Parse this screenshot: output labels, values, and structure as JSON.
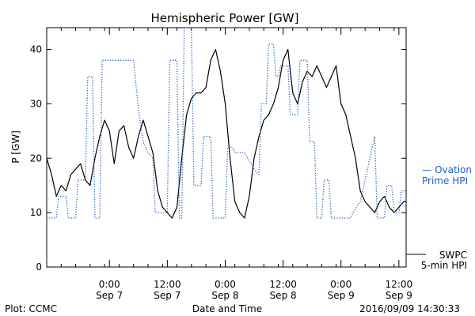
{
  "chart_data": {
    "type": "line",
    "title": "Hemispheric Power [GW]",
    "ylabel": "P [GW]",
    "xlabel": "Date and Time",
    "ylim": [
      0,
      44
    ],
    "yticks": [
      0,
      10,
      20,
      30,
      40
    ],
    "xlim": [
      "2016-09-06T11:00",
      "2016-09-09T13:30"
    ],
    "xticks": [
      {
        "t": "2016-09-07T00:00",
        "time": "0:00",
        "date": "Sep 7"
      },
      {
        "t": "2016-09-07T12:00",
        "time": "12:00",
        "date": "Sep 7"
      },
      {
        "t": "2016-09-08T00:00",
        "time": "0:00",
        "date": "Sep 8"
      },
      {
        "t": "2016-09-08T12:00",
        "time": "12:00",
        "date": "Sep 8"
      },
      {
        "t": "2016-09-09T00:00",
        "time": "0:00",
        "date": "Sep 9"
      },
      {
        "t": "2016-09-09T12:00",
        "time": "12:00",
        "date": "Sep 9"
      }
    ],
    "grid": false,
    "legend_placement": "right",
    "footer_left": "Plot: CCMC",
    "footer_right": "2016/09/09 14:30:33",
    "series": [
      {
        "name": "SWPC 5-min HPI",
        "legend": [
          "SWPC",
          "5-min HPI"
        ],
        "color": "#000000",
        "style": "solid",
        "points": [
          [
            "2016-09-06T11:00",
            20
          ],
          [
            "2016-09-06T12:00",
            17
          ],
          [
            "2016-09-06T13:00",
            13
          ],
          [
            "2016-09-06T14:00",
            15
          ],
          [
            "2016-09-06T15:00",
            14
          ],
          [
            "2016-09-06T16:00",
            17
          ],
          [
            "2016-09-06T17:00",
            18
          ],
          [
            "2016-09-06T18:00",
            19
          ],
          [
            "2016-09-06T19:00",
            16
          ],
          [
            "2016-09-06T20:00",
            15
          ],
          [
            "2016-09-06T21:00",
            20
          ],
          [
            "2016-09-06T22:00",
            24
          ],
          [
            "2016-09-06T23:00",
            27
          ],
          [
            "2016-09-07T00:00",
            25
          ],
          [
            "2016-09-07T01:00",
            19
          ],
          [
            "2016-09-07T02:00",
            25
          ],
          [
            "2016-09-07T03:00",
            26
          ],
          [
            "2016-09-07T04:00",
            22
          ],
          [
            "2016-09-07T05:00",
            20
          ],
          [
            "2016-09-07T06:00",
            24
          ],
          [
            "2016-09-07T07:00",
            27
          ],
          [
            "2016-09-07T08:00",
            24
          ],
          [
            "2016-09-07T09:00",
            21
          ],
          [
            "2016-09-07T10:00",
            14
          ],
          [
            "2016-09-07T11:00",
            11
          ],
          [
            "2016-09-07T12:00",
            10
          ],
          [
            "2016-09-07T13:00",
            9
          ],
          [
            "2016-09-07T14:00",
            11
          ],
          [
            "2016-09-07T15:00",
            20
          ],
          [
            "2016-09-07T16:00",
            28
          ],
          [
            "2016-09-07T17:00",
            31
          ],
          [
            "2016-09-07T18:00",
            32
          ],
          [
            "2016-09-07T19:00",
            32
          ],
          [
            "2016-09-07T20:00",
            33
          ],
          [
            "2016-09-07T21:00",
            38
          ],
          [
            "2016-09-07T22:00",
            40
          ],
          [
            "2016-09-07T23:00",
            36
          ],
          [
            "2016-09-08T00:00",
            30
          ],
          [
            "2016-09-08T01:00",
            20
          ],
          [
            "2016-09-08T02:00",
            12
          ],
          [
            "2016-09-08T03:00",
            10
          ],
          [
            "2016-09-08T04:00",
            9
          ],
          [
            "2016-09-08T05:00",
            13
          ],
          [
            "2016-09-08T06:00",
            20
          ],
          [
            "2016-09-08T07:00",
            24
          ],
          [
            "2016-09-08T08:00",
            27
          ],
          [
            "2016-09-08T09:00",
            28
          ],
          [
            "2016-09-08T10:00",
            30
          ],
          [
            "2016-09-08T11:00",
            33
          ],
          [
            "2016-09-08T12:00",
            38
          ],
          [
            "2016-09-08T13:00",
            40
          ],
          [
            "2016-09-08T14:00",
            32
          ],
          [
            "2016-09-08T15:00",
            30
          ],
          [
            "2016-09-08T16:00",
            34
          ],
          [
            "2016-09-08T17:00",
            36
          ],
          [
            "2016-09-08T18:00",
            35
          ],
          [
            "2016-09-08T19:00",
            37
          ],
          [
            "2016-09-08T20:00",
            35
          ],
          [
            "2016-09-08T21:00",
            33
          ],
          [
            "2016-09-08T22:00",
            35
          ],
          [
            "2016-09-08T23:00",
            37
          ],
          [
            "2016-09-09T00:00",
            30
          ],
          [
            "2016-09-09T01:00",
            28
          ],
          [
            "2016-09-09T02:00",
            24
          ],
          [
            "2016-09-09T03:00",
            20
          ],
          [
            "2016-09-09T04:00",
            14
          ],
          [
            "2016-09-09T05:00",
            12
          ],
          [
            "2016-09-09T06:00",
            11
          ],
          [
            "2016-09-09T07:00",
            10
          ],
          [
            "2016-09-09T08:00",
            12
          ],
          [
            "2016-09-09T09:00",
            13
          ],
          [
            "2016-09-09T10:00",
            11
          ],
          [
            "2016-09-09T11:00",
            10
          ],
          [
            "2016-09-09T12:00",
            11
          ],
          [
            "2016-09-09T13:00",
            12
          ],
          [
            "2016-09-09T13:30",
            12
          ]
        ]
      },
      {
        "name": "Ovation Prime HPI",
        "legend": [
          "— Ovation",
          "Prime HPI"
        ],
        "color": "#1f5fbf",
        "style": "dotted",
        "points": [
          [
            "2016-09-06T11:00",
            9
          ],
          [
            "2016-09-06T13:00",
            9
          ],
          [
            "2016-09-06T13:30",
            13
          ],
          [
            "2016-09-06T15:00",
            13
          ],
          [
            "2016-09-06T15:30",
            9
          ],
          [
            "2016-09-06T17:00",
            9
          ],
          [
            "2016-09-06T17:30",
            16
          ],
          [
            "2016-09-06T19:00",
            16
          ],
          [
            "2016-09-06T19:30",
            35
          ],
          [
            "2016-09-06T20:30",
            35
          ],
          [
            "2016-09-06T21:00",
            9
          ],
          [
            "2016-09-06T22:00",
            9
          ],
          [
            "2016-09-06T22:30",
            38
          ],
          [
            "2016-09-07T05:00",
            38
          ],
          [
            "2016-09-07T06:00",
            29
          ],
          [
            "2016-09-07T07:00",
            23
          ],
          [
            "2016-09-07T08:00",
            21
          ],
          [
            "2016-09-07T09:00",
            20
          ],
          [
            "2016-09-07T09:30",
            10
          ],
          [
            "2016-09-07T12:00",
            10
          ],
          [
            "2016-09-07T12:30",
            38
          ],
          [
            "2016-09-07T14:00",
            38
          ],
          [
            "2016-09-07T14:30",
            9
          ],
          [
            "2016-09-07T15:00",
            9
          ],
          [
            "2016-09-07T15:30",
            44
          ],
          [
            "2016-09-07T17:00",
            44
          ],
          [
            "2016-09-07T17:30",
            15
          ],
          [
            "2016-09-07T19:00",
            15
          ],
          [
            "2016-09-07T19:30",
            24
          ],
          [
            "2016-09-07T21:00",
            24
          ],
          [
            "2016-09-07T21:30",
            9
          ],
          [
            "2016-09-08T00:00",
            9
          ],
          [
            "2016-09-08T00:30",
            22
          ],
          [
            "2016-09-08T01:30",
            22
          ],
          [
            "2016-09-08T02:00",
            21
          ],
          [
            "2016-09-08T04:00",
            21
          ],
          [
            "2016-09-08T06:00",
            18
          ],
          [
            "2016-09-08T07:00",
            17
          ],
          [
            "2016-09-08T07:30",
            30
          ],
          [
            "2016-09-08T08:30",
            30
          ],
          [
            "2016-09-08T09:00",
            41
          ],
          [
            "2016-09-08T10:00",
            41
          ],
          [
            "2016-09-08T10:30",
            35
          ],
          [
            "2016-09-08T11:00",
            35
          ],
          [
            "2016-09-08T11:30",
            37
          ],
          [
            "2016-09-08T13:00",
            37
          ],
          [
            "2016-09-08T13:30",
            28
          ],
          [
            "2016-09-08T15:00",
            28
          ],
          [
            "2016-09-08T15:30",
            38
          ],
          [
            "2016-09-08T17:00",
            38
          ],
          [
            "2016-09-08T17:30",
            23
          ],
          [
            "2016-09-08T18:30",
            23
          ],
          [
            "2016-09-08T19:00",
            9
          ],
          [
            "2016-09-08T20:00",
            9
          ],
          [
            "2016-09-08T20:30",
            16
          ],
          [
            "2016-09-08T21:30",
            16
          ],
          [
            "2016-09-08T22:00",
            9
          ],
          [
            "2016-09-09T02:00",
            9
          ],
          [
            "2016-09-09T02:30",
            10
          ],
          [
            "2016-09-09T04:00",
            12
          ],
          [
            "2016-09-09T05:30",
            18
          ],
          [
            "2016-09-09T07:00",
            24
          ],
          [
            "2016-09-09T07:30",
            9
          ],
          [
            "2016-09-09T09:00",
            9
          ],
          [
            "2016-09-09T09:30",
            15
          ],
          [
            "2016-09-09T10:30",
            15
          ],
          [
            "2016-09-09T11:00",
            10
          ],
          [
            "2016-09-09T12:00",
            10
          ],
          [
            "2016-09-09T12:30",
            14
          ],
          [
            "2016-09-09T13:30",
            14
          ]
        ]
      }
    ]
  }
}
